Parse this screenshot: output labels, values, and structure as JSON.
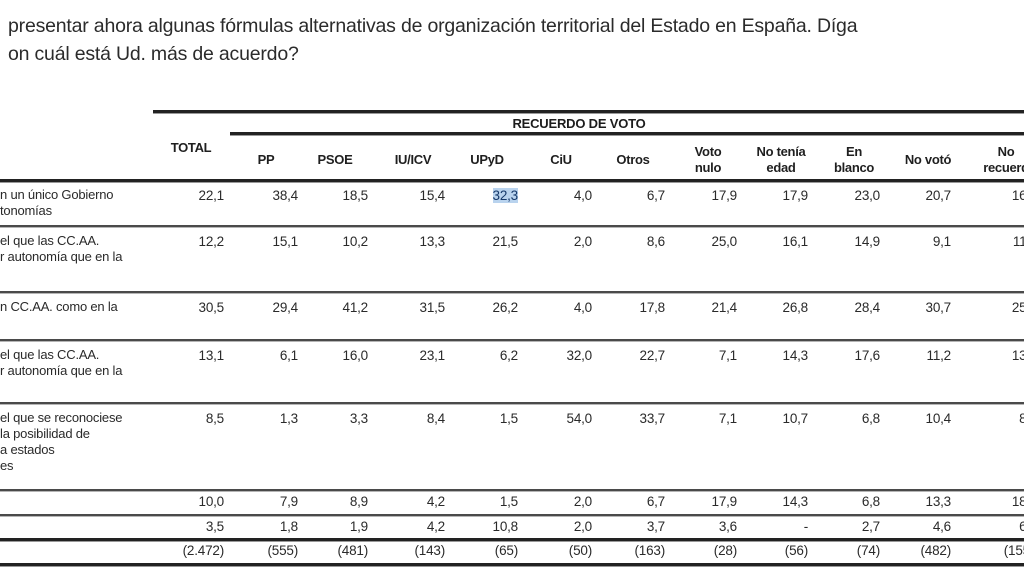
{
  "question": {
    "line1": "presentar ahora algunas fórmulas alternativas de organización territorial del Estado en España. Díga",
    "line2": "on cuál está Ud. más de acuerdo?"
  },
  "table": {
    "group_header": "RECUERDO DE VOTO",
    "total_header": "TOTAL",
    "columns": [
      {
        "l1": "PP",
        "l2": ""
      },
      {
        "l1": "PSOE",
        "l2": ""
      },
      {
        "l1": "IU/ICV",
        "l2": ""
      },
      {
        "l1": "UPyD",
        "l2": ""
      },
      {
        "l1": "CiU",
        "l2": ""
      },
      {
        "l1": "Otros",
        "l2": ""
      },
      {
        "l1": "Voto",
        "l2": "nulo"
      },
      {
        "l1": "No tenía",
        "l2": "edad"
      },
      {
        "l1": "En",
        "l2": "blanco"
      },
      {
        "l1": "No votó",
        "l2": ""
      },
      {
        "l1": "No",
        "l2": "recuerd"
      }
    ],
    "rows": [
      {
        "label": [
          "n un único Gobierno",
          "tonomías"
        ],
        "values": [
          "22,1",
          "38,4",
          "18,5",
          "15,4",
          "32,3",
          "4,0",
          "6,7",
          "17,9",
          "17,9",
          "23,0",
          "20,7",
          "16,"
        ]
      },
      {
        "label": [
          "el que las CC.AA.",
          "r autonomía que en la"
        ],
        "values": [
          "12,2",
          "15,1",
          "10,2",
          "13,3",
          "21,5",
          "2,0",
          "8,6",
          "25,0",
          "16,1",
          "14,9",
          "9,1",
          "11,"
        ]
      },
      {
        "label": [
          "n CC.AA. como en la"
        ],
        "values": [
          "30,5",
          "29,4",
          "41,2",
          "31,5",
          "26,2",
          "4,0",
          "17,8",
          "21,4",
          "26,8",
          "28,4",
          "30,7",
          "25,"
        ]
      },
      {
        "label": [
          "el que las CC.AA.",
          "r autonomía que en la"
        ],
        "values": [
          "13,1",
          "6,1",
          "16,0",
          "23,1",
          "6,2",
          "32,0",
          "22,7",
          "7,1",
          "14,3",
          "17,6",
          "11,2",
          "13,"
        ]
      },
      {
        "label": [
          "el que se reconociese",
          "la posibilidad de",
          "a estados",
          "es"
        ],
        "values": [
          "8,5",
          "1,3",
          "3,3",
          "8,4",
          "1,5",
          "54,0",
          "33,7",
          "7,1",
          "10,7",
          "6,8",
          "10,4",
          "8,"
        ]
      },
      {
        "label": [
          ""
        ],
        "values": [
          "10,0",
          "7,9",
          "8,9",
          "4,2",
          "1,5",
          "2,0",
          "6,7",
          "17,9",
          "14,3",
          "6,8",
          "13,3",
          "18,"
        ]
      },
      {
        "label": [
          ""
        ],
        "values": [
          "3,5",
          "1,8",
          "1,9",
          "4,2",
          "10,8",
          "2,0",
          "3,7",
          "3,6",
          "-",
          "2,7",
          "4,6",
          "6,"
        ]
      },
      {
        "label": [
          ""
        ],
        "values": [
          "(2.472)",
          "(555)",
          "(481)",
          "(143)",
          "(65)",
          "(50)",
          "(163)",
          "(28)",
          "(56)",
          "(74)",
          "(482)",
          "(155"
        ]
      }
    ],
    "highlighted_cell": {
      "row": 0,
      "col": "UPyD",
      "value": "32,3",
      "color": "#b9d3ee"
    }
  }
}
